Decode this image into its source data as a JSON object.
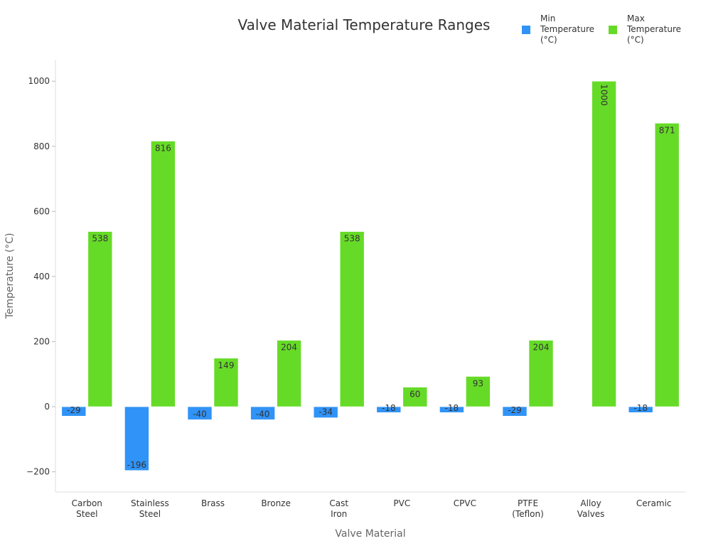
{
  "chart_data": {
    "type": "bar",
    "title": "Valve Material Temperature Ranges",
    "xlabel": "Valve Material",
    "ylabel": "Temperature (°C)",
    "categories": [
      "Carbon Steel",
      "Stainless Steel",
      "Brass",
      "Bronze",
      "Cast Iron",
      "PVC",
      "CPVC",
      "PTFE (Teflon)",
      "Alloy Valves",
      "Ceramic"
    ],
    "series": [
      {
        "name": "Min Temperature (°C)",
        "color": "#3093f7",
        "values": [
          -29,
          -196,
          -40,
          -40,
          -34,
          -18,
          -18,
          -29,
          0,
          -18
        ]
      },
      {
        "name": "Max Temperature (°C)",
        "color": "#66db27",
        "values": [
          538,
          816,
          149,
          204,
          538,
          60,
          93,
          204,
          1000,
          871
        ]
      }
    ],
    "ylim": [
      -262,
      1066
    ],
    "yticks": [
      -200,
      0,
      200,
      400,
      600,
      800,
      1000
    ],
    "legend_position": "top-right",
    "grid": false
  }
}
